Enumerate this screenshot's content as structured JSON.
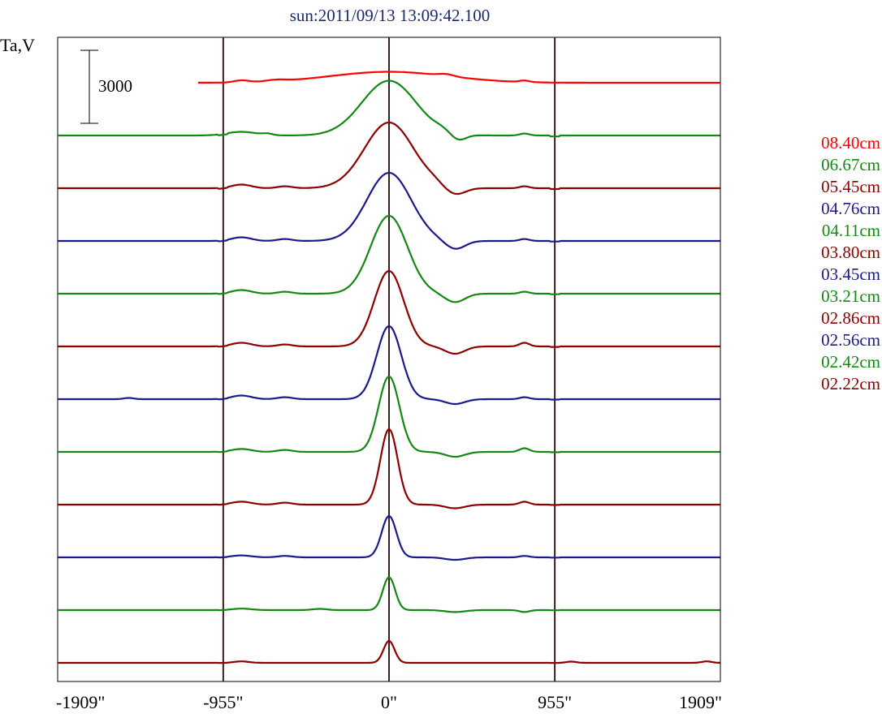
{
  "chart_data": {
    "type": "line",
    "title": "sun:2011/09/13 13:09:42.100",
    "ylabel": "Ta,V",
    "xlim": [
      -1909,
      1909
    ],
    "xticks": [
      -1909,
      -955,
      0,
      955,
      1909
    ],
    "xtick_labels": [
      "-1909\"",
      "-955\"",
      "0\"",
      "955\"",
      "1909\""
    ],
    "vlines": [
      -955,
      0,
      955
    ],
    "scale_bar": {
      "value": 3000,
      "label": "3000"
    },
    "grid": false,
    "legend_position": "right",
    "series": [
      {
        "name": "08.40cm",
        "color": "#ff0000",
        "width": 480,
        "peak": 450,
        "limb": 60,
        "features": [
          [
            -850,
            80,
            60
          ],
          [
            -650,
            60,
            80
          ],
          [
            330,
            80,
            60
          ],
          [
            780,
            60,
            40
          ]
        ],
        "startX": -1100,
        "endX": 1909
      },
      {
        "name": "06.67cm",
        "color": "#138813",
        "width": 220,
        "peak": 2250,
        "limb": 800,
        "features": [
          [
            -850,
            150,
            120
          ],
          [
            -700,
            60,
            40
          ],
          [
            300,
            80,
            60
          ],
          [
            400,
            -250,
            60
          ],
          [
            780,
            80,
            40
          ]
        ],
        "startX": -1909,
        "endX": 1909
      },
      {
        "name": "05.45cm",
        "color": "#8b0000",
        "width": 200,
        "peak": 2700,
        "limb": 650,
        "features": [
          [
            -850,
            150,
            80
          ],
          [
            -600,
            80,
            60
          ],
          [
            380,
            -300,
            80
          ],
          [
            250,
            60,
            60
          ],
          [
            780,
            80,
            40
          ]
        ],
        "startX": -1909,
        "endX": 1909
      },
      {
        "name": "04.76cm",
        "color": "#1a1a8c",
        "width": 180,
        "peak": 2800,
        "limb": 500,
        "features": [
          [
            -850,
            150,
            80
          ],
          [
            -600,
            80,
            60
          ],
          [
            380,
            -350,
            80
          ],
          [
            780,
            80,
            40
          ]
        ],
        "startX": -1909,
        "endX": 1909
      },
      {
        "name": "04.11cm",
        "color": "#138813",
        "width": 150,
        "peak": 3200,
        "limb": 450,
        "features": [
          [
            -850,
            150,
            80
          ],
          [
            -600,
            80,
            60
          ],
          [
            380,
            -350,
            80
          ],
          [
            780,
            80,
            40
          ]
        ],
        "startX": -1909,
        "endX": 1909
      },
      {
        "name": "03.80cm",
        "color": "#8b0000",
        "width": 120,
        "peak": 3100,
        "limb": 400,
        "features": [
          [
            -850,
            150,
            80
          ],
          [
            -600,
            80,
            60
          ],
          [
            380,
            -300,
            80
          ],
          [
            780,
            150,
            40
          ]
        ],
        "startX": -1909,
        "endX": 1909
      },
      {
        "name": "03.45cm",
        "color": "#1a1a8c",
        "width": 100,
        "peak": 3000,
        "limb": 350,
        "features": [
          [
            -850,
            150,
            80
          ],
          [
            -600,
            80,
            60
          ],
          [
            -1500,
            50,
            40
          ],
          [
            380,
            -200,
            80
          ],
          [
            780,
            80,
            40
          ]
        ],
        "startX": -1909,
        "endX": 1909
      },
      {
        "name": "03.21cm",
        "color": "#138813",
        "width": 85,
        "peak": 3100,
        "limb": 300,
        "features": [
          [
            -850,
            120,
            80
          ],
          [
            -600,
            80,
            60
          ],
          [
            380,
            -200,
            80
          ],
          [
            780,
            150,
            40
          ]
        ],
        "startX": -1909,
        "endX": 1909
      },
      {
        "name": "02.86cm",
        "color": "#8b0000",
        "width": 70,
        "peak": 3100,
        "limb": 250,
        "features": [
          [
            -850,
            120,
            80
          ],
          [
            -600,
            80,
            60
          ],
          [
            380,
            -150,
            80
          ],
          [
            780,
            120,
            40
          ]
        ],
        "startX": -1909,
        "endX": 1909
      },
      {
        "name": "02.56cm",
        "color": "#1a1a8c",
        "width": 60,
        "peak": 1700,
        "limb": 200,
        "features": [
          [
            -850,
            80,
            80
          ],
          [
            -600,
            60,
            60
          ],
          [
            380,
            -100,
            80
          ],
          [
            780,
            60,
            40
          ]
        ],
        "startX": -1909,
        "endX": 1909
      },
      {
        "name": "02.42cm",
        "color": "#138813",
        "width": 50,
        "peak": 1350,
        "limb": 150,
        "features": [
          [
            -850,
            60,
            80
          ],
          [
            -400,
            50,
            60
          ],
          [
            380,
            -80,
            80
          ],
          [
            780,
            -80,
            40
          ]
        ],
        "startX": -1909,
        "endX": 1909
      },
      {
        "name": "02.22cm",
        "color": "#8b0000",
        "width": 45,
        "peak": 900,
        "limb": 100,
        "features": [
          [
            -850,
            60,
            60
          ],
          [
            1050,
            50,
            40
          ],
          [
            1830,
            60,
            40
          ]
        ],
        "startX": -1909,
        "endX": 1909
      }
    ]
  }
}
